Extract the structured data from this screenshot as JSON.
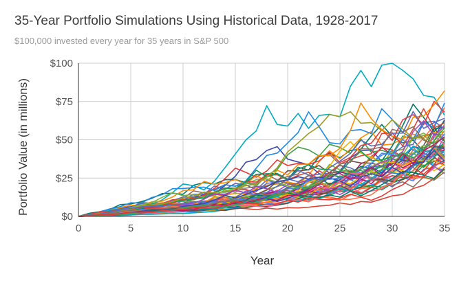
{
  "chart_data": {
    "type": "line",
    "title": "35-Year Portfolio Simulations Using Historical Data, 1928-2017",
    "subtitle": "$100,000 invested every year for 35 years in S&P 500",
    "xlabel": "Year",
    "ylabel": "Portfolio Value (in millions)",
    "xlim": [
      0,
      35
    ],
    "ylim": [
      0,
      100
    ],
    "x_ticks": [
      "0",
      "5",
      "10",
      "15",
      "20",
      "25",
      "30",
      "35"
    ],
    "y_ticks": [
      "$0",
      "$25",
      "$50",
      "$75",
      "$100"
    ],
    "grid": true,
    "legend": "none",
    "series_count": 56,
    "final_values": [
      30,
      32,
      34,
      36,
      28,
      41,
      45,
      38,
      52,
      47,
      58,
      33,
      63,
      39,
      50,
      44,
      37,
      55,
      49,
      60,
      42,
      35,
      31,
      48,
      53,
      66,
      71,
      46,
      57,
      40,
      62,
      43,
      36,
      29,
      51,
      68,
      74,
      82,
      45,
      38,
      54,
      61,
      33,
      49,
      59,
      42,
      37,
      56,
      64,
      47,
      31,
      52,
      44,
      39,
      58,
      35
    ],
    "series": [
      {
        "x": [
          0,
          5,
          10,
          15,
          20,
          25,
          30,
          35
        ],
        "values": [
          0,
          0.6,
          1.6,
          3.5,
          6.5,
          11,
          19,
          30
        ]
      },
      {
        "x": [
          0,
          5,
          10,
          15,
          20,
          25,
          30,
          35
        ],
        "values": [
          0,
          0.7,
          2.0,
          4.5,
          8.8,
          15.5,
          26,
          41
        ]
      },
      {
        "x": [
          0,
          5,
          10,
          15,
          20,
          25,
          30,
          35
        ],
        "values": [
          0,
          0.8,
          2.4,
          5.5,
          11,
          19,
          32,
          52
        ]
      },
      {
        "x": [
          0,
          5,
          10,
          15,
          20,
          25,
          30,
          35
        ],
        "values": [
          0,
          0.7,
          2.3,
          5.8,
          12.5,
          23,
          40,
          63
        ]
      },
      {
        "x": [
          0,
          5,
          10,
          15,
          20,
          25,
          30,
          35
        ],
        "values": [
          0,
          0.9,
          2.6,
          6.0,
          12.5,
          24,
          45,
          74
        ]
      },
      {
        "x": [
          0,
          5,
          10,
          15,
          20,
          25,
          30,
          35
        ],
        "values": [
          0,
          0.9,
          2.8,
          6.5,
          14,
          27,
          50,
          82
        ]
      }
    ]
  },
  "colors": [
    "#4285f4",
    "#db4437",
    "#f4b400",
    "#0f9d58",
    "#ab47bc",
    "#00acc1",
    "#ff7043",
    "#9e9d24",
    "#5c6bc0",
    "#f06292",
    "#00796b",
    "#c2185b",
    "#3949ab",
    "#8d6e63",
    "#43a047",
    "#e53935",
    "#1e88e5",
    "#fb8c00",
    "#6d4c41",
    "#7cb342"
  ]
}
